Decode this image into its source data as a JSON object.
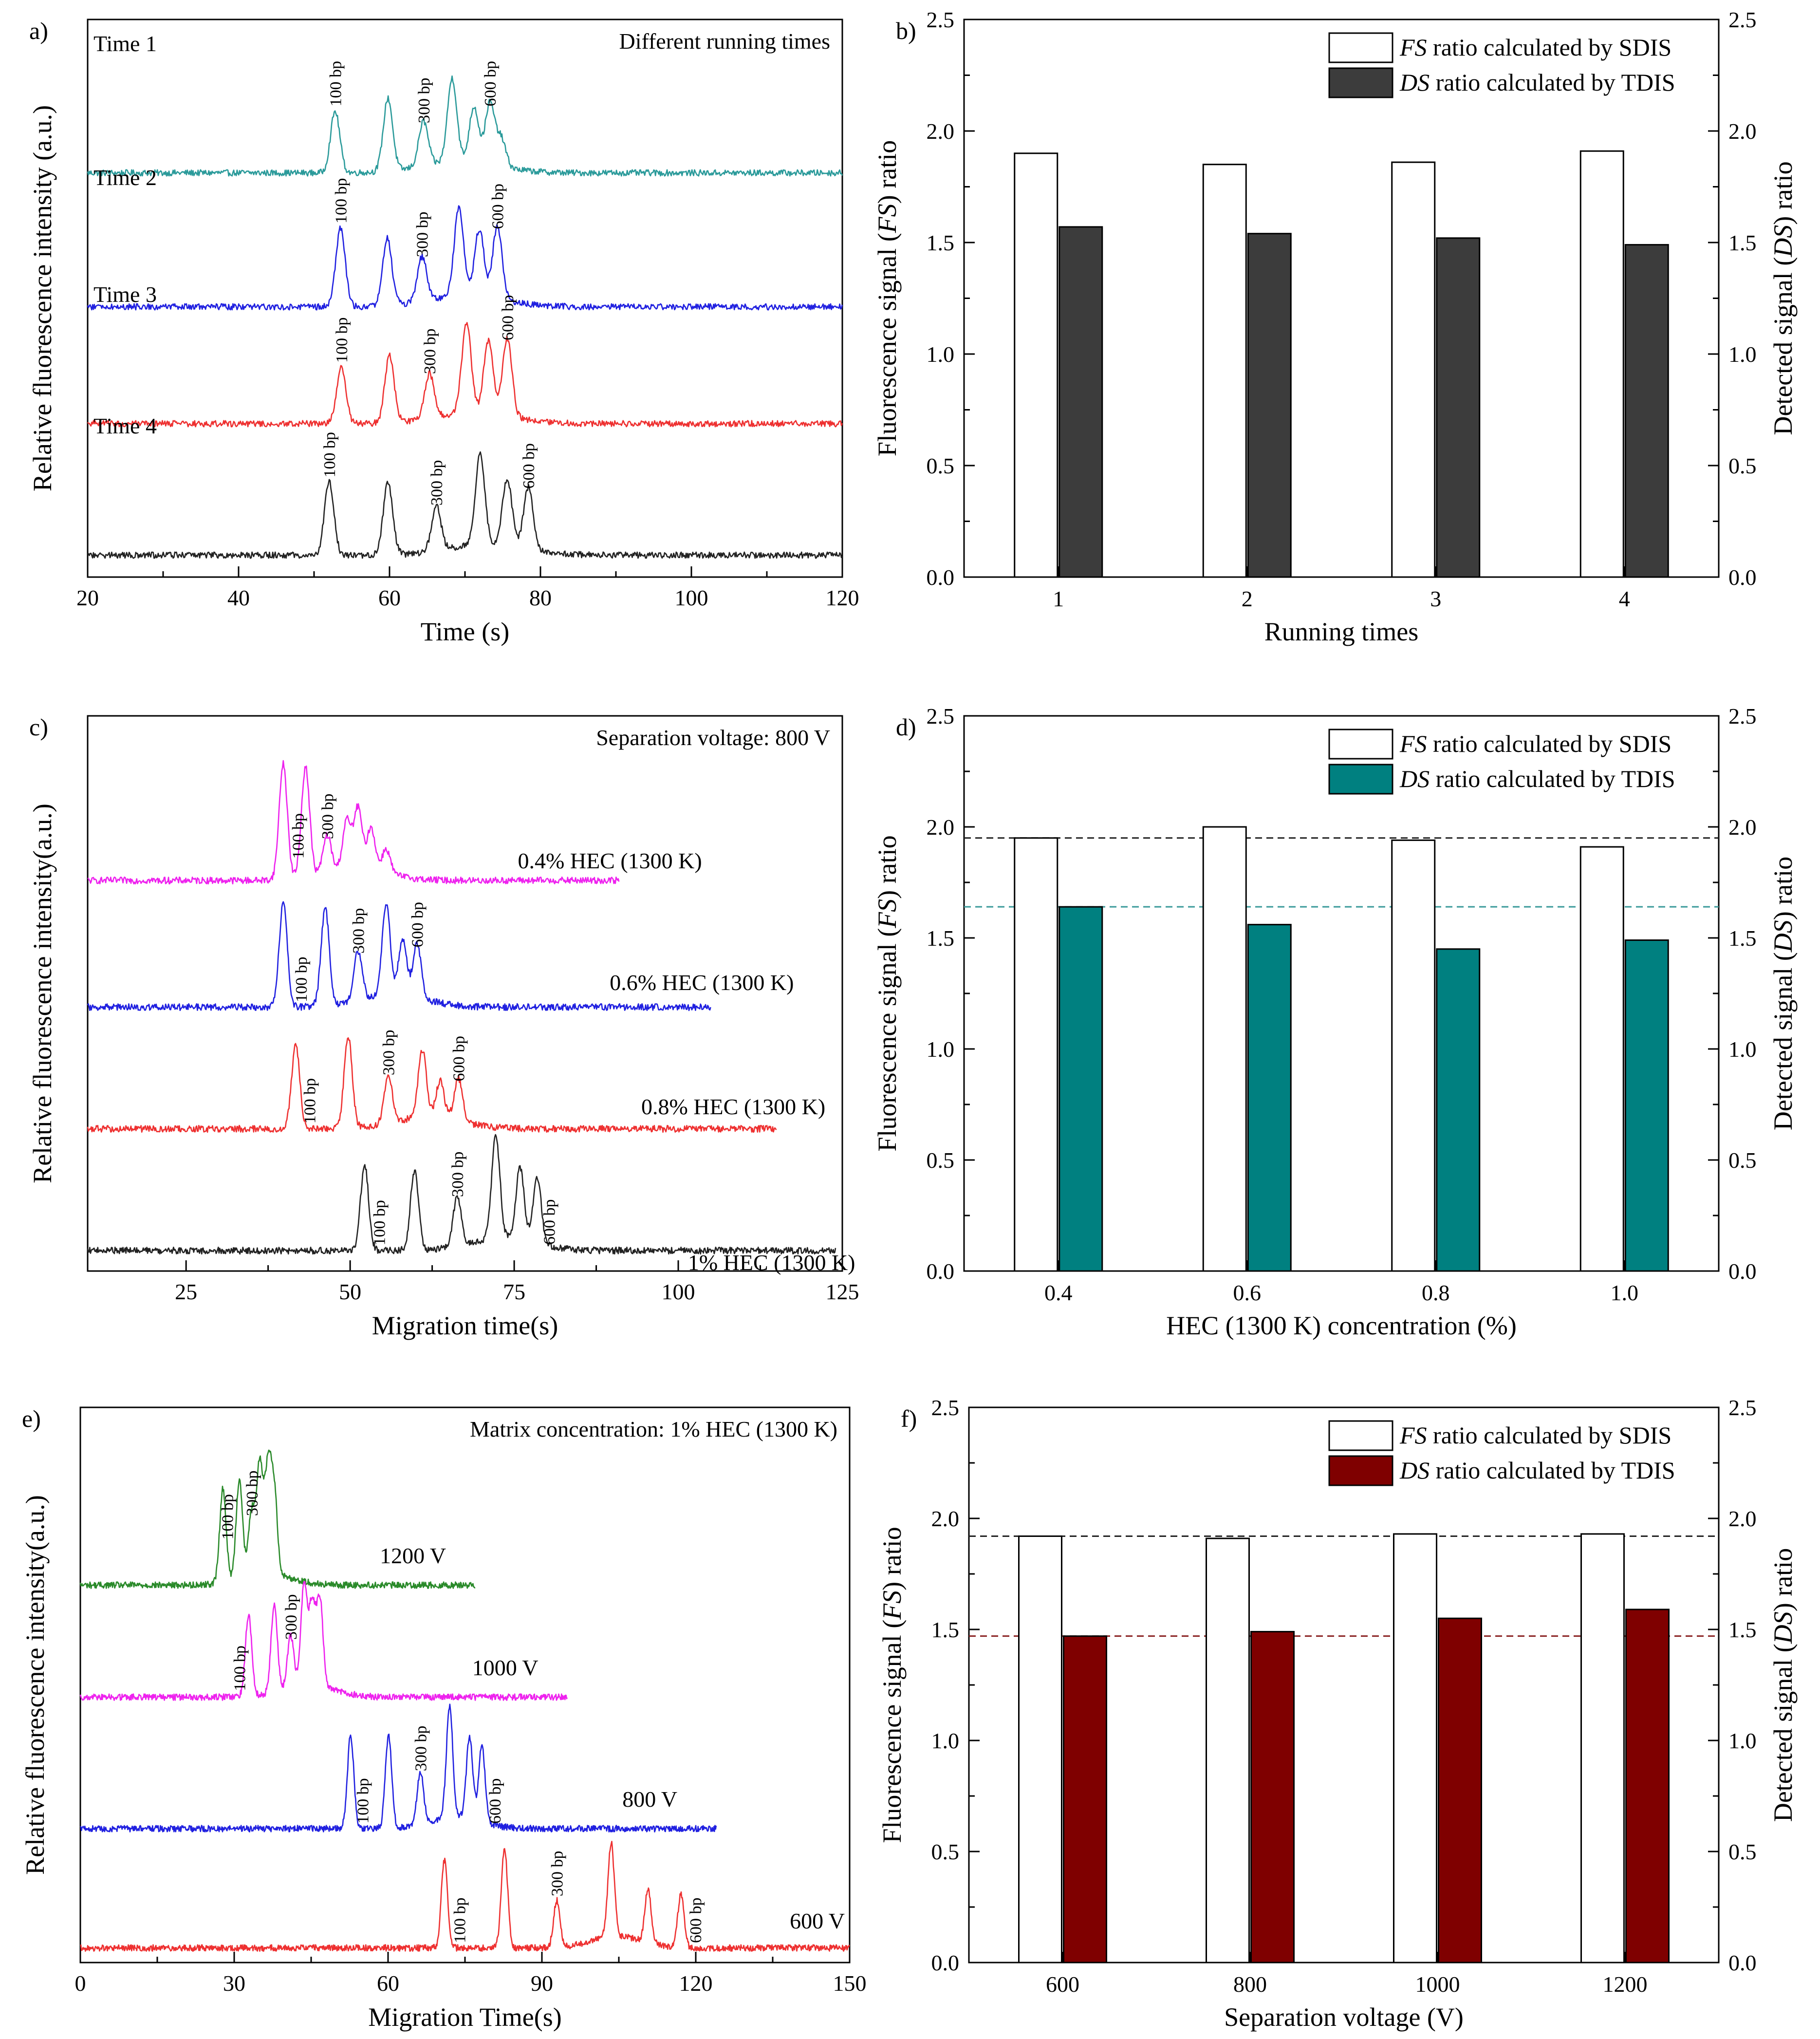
{
  "figure": "Six-panel figure: electropherograms and fluorescence/detected signal ratio bar charts",
  "chart_data": [
    {
      "panel": "a)",
      "type": "line",
      "annotation": "Different running times",
      "xlabel": "Time (s)",
      "ylabel": "Relative fluorescence intensity (a.u.)",
      "xlim": [
        20,
        120
      ],
      "xticks": [
        20,
        40,
        60,
        80,
        100,
        120
      ],
      "series": [
        {
          "name": "Time 1",
          "color": "#2a9a9a",
          "xrange": [
            20,
            120
          ],
          "peaks": [
            [
              52.8,
              0.55
            ],
            [
              59.8,
              0.65
            ],
            [
              64.5,
              0.4
            ],
            [
              68.3,
              0.75
            ],
            [
              71.2,
              0.5
            ],
            [
              73.3,
              0.55
            ],
            [
              74.8,
              0.25
            ]
          ],
          "labels": [
            {
              "text": "100 bp",
              "x": 52.8
            },
            {
              "text": "300 bp",
              "x": 64.5
            },
            {
              "text": "600 bp",
              "x": 73.3
            }
          ]
        },
        {
          "name": "Time 2",
          "color": "#2020e0",
          "xrange": [
            20,
            120
          ],
          "peaks": [
            [
              53.5,
              0.7
            ],
            [
              59.7,
              0.6
            ],
            [
              64.3,
              0.4
            ],
            [
              69.2,
              0.8
            ],
            [
              71.9,
              0.6
            ],
            [
              74.3,
              0.65
            ]
          ],
          "labels": [
            {
              "text": "100 bp",
              "x": 53.5
            },
            {
              "text": "300 bp",
              "x": 64.3
            },
            {
              "text": "600 bp",
              "x": 74.3
            }
          ]
        },
        {
          "name": "Time 3",
          "color": "#ee3030",
          "xrange": [
            20,
            120
          ],
          "peaks": [
            [
              53.6,
              0.5
            ],
            [
              60.0,
              0.6
            ],
            [
              65.3,
              0.4
            ],
            [
              70.2,
              0.8
            ],
            [
              73.1,
              0.65
            ],
            [
              75.6,
              0.7
            ]
          ],
          "labels": [
            {
              "text": "100 bp",
              "x": 53.6
            },
            {
              "text": "300 bp",
              "x": 65.3
            },
            {
              "text": "600 bp",
              "x": 75.6
            }
          ]
        },
        {
          "name": "Time 4",
          "color": "#222222",
          "xrange": [
            20,
            120
          ],
          "peaks": [
            [
              52.0,
              0.65
            ],
            [
              59.8,
              0.65
            ],
            [
              66.2,
              0.4
            ],
            [
              72.0,
              0.8
            ],
            [
              75.6,
              0.6
            ],
            [
              78.4,
              0.55
            ]
          ],
          "labels": [
            {
              "text": "100 bp",
              "x": 52.0
            },
            {
              "text": "300 bp",
              "x": 66.2
            },
            {
              "text": "600 bp",
              "x": 78.4
            }
          ]
        }
      ]
    },
    {
      "panel": "b)",
      "type": "bar",
      "categories": [
        "1",
        "2",
        "3",
        "4"
      ],
      "series": [
        {
          "name": "FS ratio calculated by SDIS",
          "name_italic": "FS",
          "name_rest": " ratio calculated by SDIS",
          "values": [
            1.9,
            1.85,
            1.86,
            1.91
          ],
          "color": "#ffffff"
        },
        {
          "name": "DS ratio calculated by TDIS",
          "name_italic": "DS",
          "name_rest": " ratio calculated by TDIS",
          "values": [
            1.57,
            1.54,
            1.52,
            1.49
          ],
          "color": "#3c3c3c"
        }
      ],
      "xlabel": "Running times",
      "ylabel_left": {
        "pre": "Fluorescence signal (",
        "it": "FS",
        "post": ") ratio"
      },
      "ylabel_right": {
        "pre": "Detected signal (",
        "it": "DS",
        "post": ") ratio"
      },
      "ylim": [
        0.0,
        2.5
      ],
      "yticks": [
        "0.0",
        "0.5",
        "1.0",
        "1.5",
        "2.0",
        "2.5"
      ],
      "reflines": []
    },
    {
      "panel": "c)",
      "type": "line",
      "annotation": "Separation voltage: 800 V",
      "xlabel": "Migration time(s)",
      "ylabel": "Relative fluorescence intensity(a.u.)",
      "xlim": [
        10,
        125
      ],
      "xticks": [
        25,
        50,
        75,
        100,
        125
      ],
      "series": [
        {
          "name": "0.4% HEC (1300 K)",
          "color": "#ee22ee",
          "xrange": [
            10,
            91
          ],
          "peaks": [
            [
              39.8,
              0.95
            ],
            [
              43.2,
              0.9
            ],
            [
              46.5,
              0.3
            ],
            [
              49.5,
              0.4
            ],
            [
              51.2,
              0.5
            ],
            [
              53.2,
              0.35
            ],
            [
              55.5,
              0.2
            ]
          ],
          "labels": [
            {
              "text": "100 bp",
              "x": 42.0
            },
            {
              "text": "300 bp",
              "x": 46.5
            }
          ]
        },
        {
          "name": "0.6% HEC (1300 K)",
          "color": "#2020e0",
          "xrange": [
            10,
            105
          ],
          "peaks": [
            [
              39.8,
              0.85
            ],
            [
              46.2,
              0.8
            ],
            [
              51.2,
              0.4
            ],
            [
              55.5,
              0.75
            ],
            [
              58.0,
              0.45
            ],
            [
              60.2,
              0.45
            ]
          ],
          "labels": [
            {
              "text": "100 bp",
              "x": 42.5
            },
            {
              "text": "300 bp",
              "x": 51.2
            },
            {
              "text": "600 bp",
              "x": 60.2
            }
          ]
        },
        {
          "name": "0.8% HEC (1300 K)",
          "color": "#ee3030",
          "xrange": [
            10,
            115
          ],
          "peaks": [
            [
              41.7,
              0.7
            ],
            [
              49.7,
              0.75
            ],
            [
              55.8,
              0.4
            ],
            [
              61.0,
              0.55
            ],
            [
              63.7,
              0.3
            ],
            [
              66.5,
              0.35
            ]
          ],
          "labels": [
            {
              "text": "100 bp",
              "x": 43.8
            },
            {
              "text": "300 bp",
              "x": 55.8
            },
            {
              "text": "600 bp",
              "x": 66.5
            }
          ]
        },
        {
          "name": "1% HEC (1300 K)",
          "color": "#222222",
          "xrange": [
            10,
            124
          ],
          "peaks": [
            [
              52.2,
              0.7
            ],
            [
              59.8,
              0.65
            ],
            [
              66.3,
              0.4
            ],
            [
              72.2,
              0.85
            ],
            [
              75.9,
              0.6
            ],
            [
              78.5,
              0.55
            ]
          ],
          "labels": [
            {
              "text": "100 bp",
              "x": 54.4
            },
            {
              "text": "300 bp",
              "x": 66.3
            },
            {
              "text": "600 bp",
              "x": 80.3
            }
          ]
        }
      ]
    },
    {
      "panel": "d)",
      "type": "bar",
      "categories": [
        "0.4",
        "0.6",
        "0.8",
        "1.0"
      ],
      "series": [
        {
          "name": "FS ratio calculated by SDIS",
          "name_italic": "FS",
          "name_rest": " ratio calculated by SDIS",
          "values": [
            1.95,
            2.0,
            1.94,
            1.91
          ],
          "color": "#ffffff"
        },
        {
          "name": "DS ratio calculated by TDIS",
          "name_italic": "DS",
          "name_rest": " ratio calculated by TDIS",
          "values": [
            1.64,
            1.56,
            1.45,
            1.49
          ],
          "color": "#008080"
        }
      ],
      "xlabel": "HEC (1300 K) concentration (%)",
      "ylabel_left": {
        "pre": "Fluorescence signal (",
        "it": "FS",
        "post": ") ratio"
      },
      "ylabel_right": {
        "pre": "Detected signal (",
        "it": "DS",
        "post": ") ratio"
      },
      "ylim": [
        0.0,
        2.5
      ],
      "yticks": [
        "0.0",
        "0.5",
        "1.0",
        "1.5",
        "2.0",
        "2.5"
      ],
      "reflines": [
        {
          "value": 1.95,
          "color": "#222222"
        },
        {
          "value": 1.64,
          "color": "#3a9a9a"
        }
      ]
    },
    {
      "panel": "e)",
      "type": "line",
      "annotation": "Matrix concentration: 1% HEC (1300 K)",
      "xlabel": "Migration Time(s)",
      "ylabel": "Relative fluorescence intensity(a.u.)",
      "xlim": [
        0,
        150
      ],
      "xticks": [
        0,
        30,
        60,
        90,
        120,
        150
      ],
      "series": [
        {
          "name": "1200 V",
          "color": "#2a8a2a",
          "xrange": [
            0,
            77
          ],
          "peaks": [
            [
              27.8,
              0.8
            ],
            [
              31.0,
              0.85
            ],
            [
              33.4,
              0.55
            ],
            [
              35.0,
              0.95
            ],
            [
              36.6,
              0.9
            ],
            [
              37.8,
              0.7
            ]
          ],
          "labels": [
            {
              "text": "100 bp",
              "x": 28.6
            },
            {
              "text": "300 bp",
              "x": 33.4
            }
          ]
        },
        {
          "name": "1000 V",
          "color": "#ee22ee",
          "xrange": [
            0,
            95
          ],
          "peaks": [
            [
              32.8,
              0.7
            ],
            [
              37.8,
              0.75
            ],
            [
              41.0,
              0.45
            ],
            [
              43.6,
              0.85
            ],
            [
              45.2,
              0.7
            ],
            [
              46.7,
              0.75
            ]
          ],
          "labels": [
            {
              "text": "100 bp",
              "x": 31.0
            },
            {
              "text": "300 bp",
              "x": 41.0
            }
          ]
        },
        {
          "name": "800 V",
          "color": "#2020e0",
          "xrange": [
            0,
            124
          ],
          "peaks": [
            [
              52.7,
              0.8
            ],
            [
              60.1,
              0.8
            ],
            [
              66.3,
              0.45
            ],
            [
              72.0,
              0.95
            ],
            [
              75.9,
              0.7
            ],
            [
              78.3,
              0.65
            ]
          ],
          "labels": [
            {
              "text": "100 bp",
              "x": 55.0
            },
            {
              "text": "300 bp",
              "x": 66.3
            },
            {
              "text": "600 bp",
              "x": 80.8
            }
          ]
        },
        {
          "name": "600 V",
          "color": "#ee3030",
          "xrange": [
            0,
            150
          ],
          "peaks": [
            [
              71.0,
              0.75
            ],
            [
              82.7,
              0.85
            ],
            [
              92.9,
              0.4
            ],
            [
              103.5,
              0.8
            ],
            [
              110.7,
              0.45
            ],
            [
              117.1,
              0.45
            ]
          ],
          "labels": [
            {
              "text": "100 bp",
              "x": 73.9
            },
            {
              "text": "300 bp",
              "x": 92.9
            },
            {
              "text": "600 bp",
              "x": 119.9
            }
          ]
        }
      ]
    },
    {
      "panel": "f)",
      "type": "bar",
      "categories": [
        "600",
        "800",
        "1000",
        "1200"
      ],
      "series": [
        {
          "name": "FS ratio calculated by SDIS",
          "name_italic": "FS",
          "name_rest": " ratio calculated by SDIS",
          "values": [
            1.92,
            1.91,
            1.93,
            1.93
          ],
          "color": "#ffffff"
        },
        {
          "name": "DS ratio calculated by TDIS",
          "name_italic": "DS",
          "name_rest": " ratio calculated by TDIS",
          "values": [
            1.47,
            1.49,
            1.55,
            1.59
          ],
          "color": "#7f0000"
        }
      ],
      "xlabel": "Separation voltage (V)",
      "ylabel_left": {
        "pre": "Fluorescence signal (",
        "it": "FS",
        "post": ") ratio"
      },
      "ylabel_right": {
        "pre": "Detected signal (",
        "it": "DS",
        "post": ") ratio"
      },
      "ylim": [
        0.0,
        2.5
      ],
      "yticks": [
        "0.0",
        "0.5",
        "1.0",
        "1.5",
        "2.0",
        "2.5"
      ],
      "reflines": [
        {
          "value": 1.92,
          "color": "#222222"
        },
        {
          "value": 1.47,
          "color": "#8a2020"
        }
      ]
    }
  ]
}
